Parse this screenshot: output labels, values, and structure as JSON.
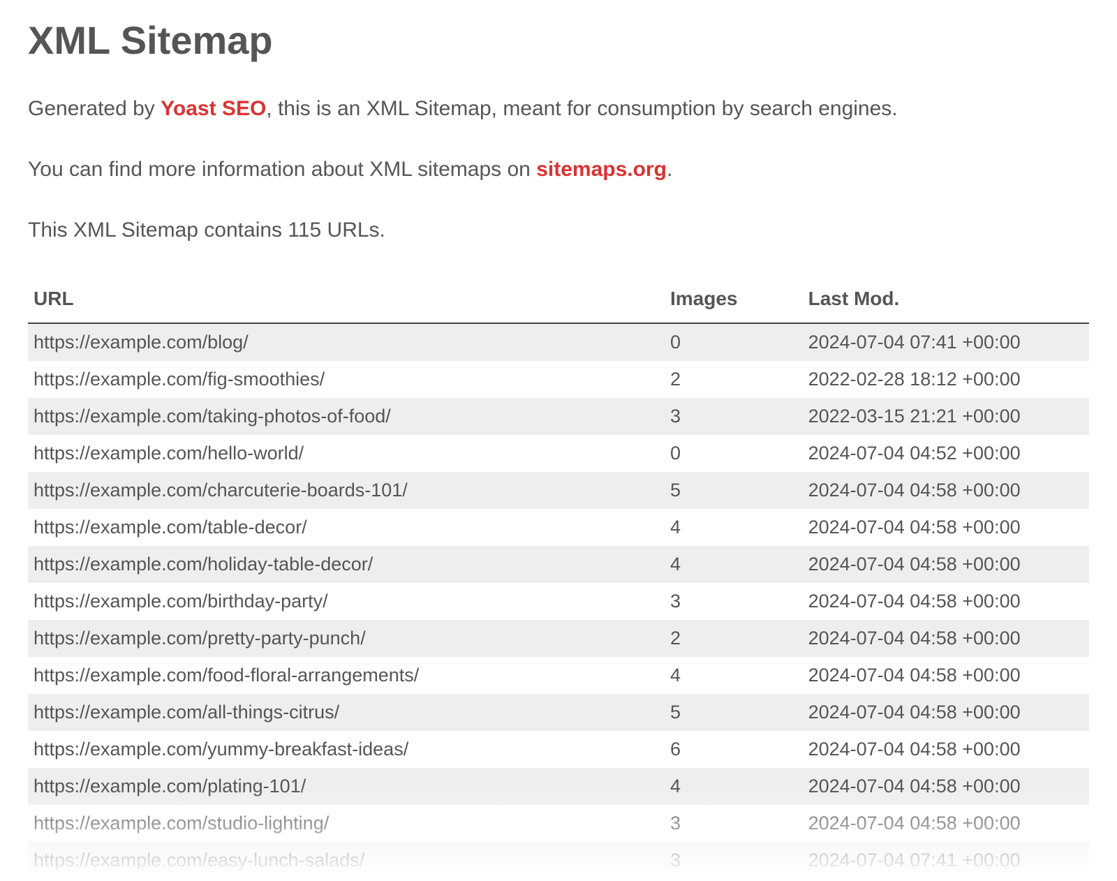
{
  "title": "XML Sitemap",
  "intro": {
    "line1_pre": "Generated by ",
    "brand": "Yoast SEO",
    "line1_post": ", this is an XML Sitemap, meant for consumption by search engines.",
    "line2_pre": "You can find more information about XML sitemaps on ",
    "link": "sitemaps.org",
    "line2_post": ".",
    "count_line": "This XML Sitemap contains 115 URLs."
  },
  "columns": {
    "url": "URL",
    "images": "Images",
    "lastmod": "Last Mod."
  },
  "rows": [
    {
      "url": "https://example.com/blog/",
      "images": "0",
      "lastmod": "2024-07-04 07:41 +00:00"
    },
    {
      "url": "https://example.com/fig-smoothies/",
      "images": "2",
      "lastmod": "2022-02-28 18:12 +00:00"
    },
    {
      "url": "https://example.com/taking-photos-of-food/",
      "images": "3",
      "lastmod": "2022-03-15 21:21 +00:00"
    },
    {
      "url": "https://example.com/hello-world/",
      "images": "0",
      "lastmod": "2024-07-04 04:52 +00:00"
    },
    {
      "url": "https://example.com/charcuterie-boards-101/",
      "images": "5",
      "lastmod": "2024-07-04 04:58 +00:00"
    },
    {
      "url": "https://example.com/table-decor/",
      "images": "4",
      "lastmod": "2024-07-04 04:58 +00:00"
    },
    {
      "url": "https://example.com/holiday-table-decor/",
      "images": "4",
      "lastmod": "2024-07-04 04:58 +00:00"
    },
    {
      "url": "https://example.com/birthday-party/",
      "images": "3",
      "lastmod": "2024-07-04 04:58 +00:00"
    },
    {
      "url": "https://example.com/pretty-party-punch/",
      "images": "2",
      "lastmod": "2024-07-04 04:58 +00:00"
    },
    {
      "url": "https://example.com/food-floral-arrangements/",
      "images": "4",
      "lastmod": "2024-07-04 04:58 +00:00"
    },
    {
      "url": "https://example.com/all-things-citrus/",
      "images": "5",
      "lastmod": "2024-07-04 04:58 +00:00"
    },
    {
      "url": "https://example.com/yummy-breakfast-ideas/",
      "images": "6",
      "lastmod": "2024-07-04 04:58 +00:00"
    },
    {
      "url": "https://example.com/plating-101/",
      "images": "4",
      "lastmod": "2024-07-04 04:58 +00:00"
    },
    {
      "url": "https://example.com/studio-lighting/",
      "images": "3",
      "lastmod": "2024-07-04 04:58 +00:00"
    },
    {
      "url": "https://example.com/easy-lunch-salads/",
      "images": "3",
      "lastmod": "2024-07-04 07:41 +00:00"
    }
  ],
  "colors": {
    "text": "#555555",
    "link": "#dc3232",
    "row_odd_bg": "#eeeeee",
    "row_even_bg": "#ffffff",
    "header_border": "#444444",
    "background": "#ffffff"
  },
  "typography": {
    "title_fontsize": 56,
    "body_fontsize": 30,
    "table_fontsize": 27,
    "font_family": "Helvetica, Arial, sans-serif"
  }
}
